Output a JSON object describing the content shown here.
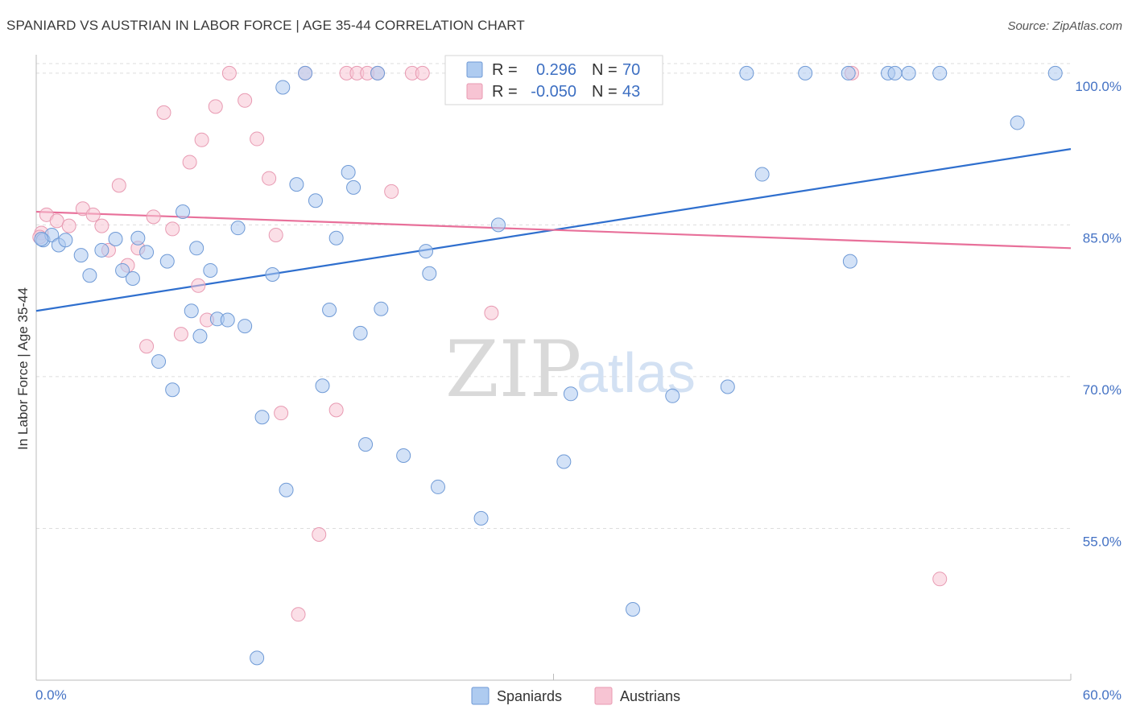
{
  "header": {
    "title": "SPANIARD VS AUSTRIAN IN LABOR FORCE | AGE 35-44 CORRELATION CHART",
    "source": "Source: ZipAtlas.com"
  },
  "watermark": {
    "zip": "ZIP",
    "atlas": "atlas"
  },
  "colors": {
    "spaniards_fill": "#aecbf0",
    "spaniards_stroke": "#6f9ad6",
    "spaniards_line": "#2f6fce",
    "austrians_fill": "#f7c4d3",
    "austrians_stroke": "#e89ab2",
    "austrians_line": "#e8709a",
    "tick_label": "#4472c4",
    "grid": "#dddddd"
  },
  "legend_top": {
    "rows": [
      {
        "r_label": "R =",
        "r_value": "0.296",
        "n_label": "N =",
        "n_value": "70"
      },
      {
        "r_label": "R =",
        "r_value": "-0.050",
        "n_label": "N =",
        "n_value": "43"
      }
    ]
  },
  "legend_bottom": {
    "items": [
      "Spaniards",
      "Austrians"
    ]
  },
  "chart_data": {
    "type": "scatter",
    "title": "SPANIARD VS AUSTRIAN IN LABOR FORCE | AGE 35-44 CORRELATION CHART",
    "xlabel": "",
    "ylabel": "In Labor Force | Age 35-44",
    "xlim": [
      0,
      60
    ],
    "ylim": [
      40,
      101.5
    ],
    "x_tick_labels": {
      "min": "0.0%",
      "max": "60.0%"
    },
    "y_ticks": [
      100,
      85,
      70,
      55
    ],
    "y_tick_labels": [
      "100.0%",
      "85.0%",
      "70.0%",
      "55.0%"
    ],
    "grid": true,
    "legend_position": "top-center",
    "series": [
      {
        "name": "Spaniards",
        "r": 0.296,
        "n": 70,
        "trend": {
          "x": [
            0,
            60
          ],
          "y": [
            76.5,
            92.5
          ]
        },
        "points": [
          [
            0.4,
            83.5
          ],
          [
            0.9,
            84.0
          ],
          [
            1.3,
            83.0
          ],
          [
            1.7,
            83.5
          ],
          [
            2.6,
            82.0
          ],
          [
            3.1,
            80.0
          ],
          [
            3.8,
            82.5
          ],
          [
            4.6,
            83.6
          ],
          [
            5.0,
            80.5
          ],
          [
            5.6,
            79.7
          ],
          [
            5.9,
            83.7
          ],
          [
            6.4,
            82.3
          ],
          [
            7.1,
            71.5
          ],
          [
            7.6,
            81.4
          ],
          [
            7.9,
            68.7
          ],
          [
            8.5,
            86.3
          ],
          [
            9.0,
            76.5
          ],
          [
            9.3,
            82.7
          ],
          [
            9.5,
            74.0
          ],
          [
            10.1,
            80.5
          ],
          [
            10.5,
            75.7
          ],
          [
            11.1,
            75.6
          ],
          [
            11.7,
            84.7
          ],
          [
            12.1,
            75.0
          ],
          [
            12.8,
            42.2
          ],
          [
            13.1,
            66.0
          ],
          [
            13.7,
            80.1
          ],
          [
            14.3,
            98.6
          ],
          [
            14.5,
            58.8
          ],
          [
            15.1,
            89.0
          ],
          [
            15.6,
            100.0
          ],
          [
            16.2,
            87.4
          ],
          [
            16.6,
            69.1
          ],
          [
            17.0,
            76.6
          ],
          [
            17.4,
            83.7
          ],
          [
            18.1,
            90.2
          ],
          [
            18.4,
            88.7
          ],
          [
            18.8,
            74.3
          ],
          [
            19.1,
            63.3
          ],
          [
            19.8,
            100.0
          ],
          [
            20.0,
            76.7
          ],
          [
            21.3,
            62.2
          ],
          [
            22.6,
            82.4
          ],
          [
            22.8,
            80.2
          ],
          [
            23.3,
            59.1
          ],
          [
            24.2,
            100.0
          ],
          [
            24.6,
            100.0
          ],
          [
            25.2,
            98.0
          ],
          [
            25.6,
            100.0
          ],
          [
            25.8,
            56.0
          ],
          [
            26.8,
            85.0
          ],
          [
            28.7,
            100.0
          ],
          [
            30.6,
            61.6
          ],
          [
            31.0,
            68.3
          ],
          [
            34.6,
            47.0
          ],
          [
            36.9,
            68.1
          ],
          [
            40.1,
            69.0
          ],
          [
            41.2,
            100.0
          ],
          [
            42.1,
            90.0
          ],
          [
            44.6,
            100.0
          ],
          [
            47.1,
            100.0
          ],
          [
            47.2,
            81.4
          ],
          [
            49.4,
            100.0
          ],
          [
            49.8,
            100.0
          ],
          [
            50.6,
            100.0
          ],
          [
            52.4,
            100.0
          ],
          [
            56.9,
            95.1
          ],
          [
            59.1,
            100.0
          ],
          [
            0.3,
            83.6
          ],
          [
            27.2,
            100.0
          ]
        ]
      },
      {
        "name": "Austrians",
        "r": -0.05,
        "n": 43,
        "trend": {
          "x": [
            0,
            60
          ],
          "y": [
            86.3,
            82.7
          ]
        },
        "points": [
          [
            0.3,
            84.2
          ],
          [
            0.6,
            86.0
          ],
          [
            1.2,
            85.4
          ],
          [
            1.9,
            84.9
          ],
          [
            2.7,
            86.6
          ],
          [
            3.3,
            86.0
          ],
          [
            3.8,
            84.9
          ],
          [
            4.2,
            82.5
          ],
          [
            4.8,
            88.9
          ],
          [
            5.3,
            81.0
          ],
          [
            5.9,
            82.7
          ],
          [
            6.4,
            73.0
          ],
          [
            6.8,
            85.8
          ],
          [
            7.4,
            96.1
          ],
          [
            7.9,
            84.6
          ],
          [
            8.4,
            74.2
          ],
          [
            8.9,
            91.2
          ],
          [
            9.4,
            79.0
          ],
          [
            9.6,
            93.4
          ],
          [
            9.9,
            75.6
          ],
          [
            10.4,
            96.7
          ],
          [
            11.2,
            100.0
          ],
          [
            12.1,
            97.3
          ],
          [
            12.8,
            93.5
          ],
          [
            13.5,
            89.6
          ],
          [
            13.9,
            84.0
          ],
          [
            14.2,
            66.4
          ],
          [
            15.2,
            46.5
          ],
          [
            15.6,
            100.0
          ],
          [
            16.4,
            54.4
          ],
          [
            17.4,
            66.7
          ],
          [
            18.0,
            100.0
          ],
          [
            18.6,
            100.0
          ],
          [
            19.2,
            100.0
          ],
          [
            19.8,
            100.0
          ],
          [
            20.6,
            88.3
          ],
          [
            21.8,
            100.0
          ],
          [
            22.4,
            100.0
          ],
          [
            24.8,
            100.0
          ],
          [
            26.4,
            76.3
          ],
          [
            47.3,
            100.0
          ],
          [
            52.4,
            50.0
          ],
          [
            0.2,
            83.8
          ]
        ]
      }
    ]
  }
}
